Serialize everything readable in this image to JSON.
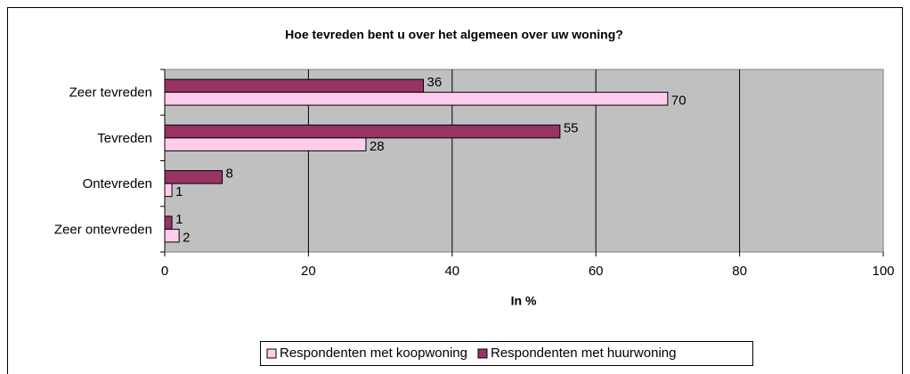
{
  "chart_data": {
    "type": "hbar",
    "title": "Hoe tevreden bent u over het algemeen over uw woning?",
    "x_label": "In %",
    "categories": [
      "Zeer tevreden",
      "Tevreden",
      "Ontevreden",
      "Zeer ontevreden"
    ],
    "series": [
      {
        "name": "Respondenten met koopwoning",
        "color": "#ffccee",
        "values": [
          70,
          28,
          1,
          2
        ]
      },
      {
        "name": "Respondenten met huurwoning",
        "color": "#993366",
        "values": [
          36,
          55,
          8,
          1
        ]
      }
    ],
    "xlim": [
      0,
      100
    ],
    "xticks": [
      0,
      20,
      40,
      60,
      80,
      100
    ],
    "grid": true,
    "legend": "bottom"
  }
}
